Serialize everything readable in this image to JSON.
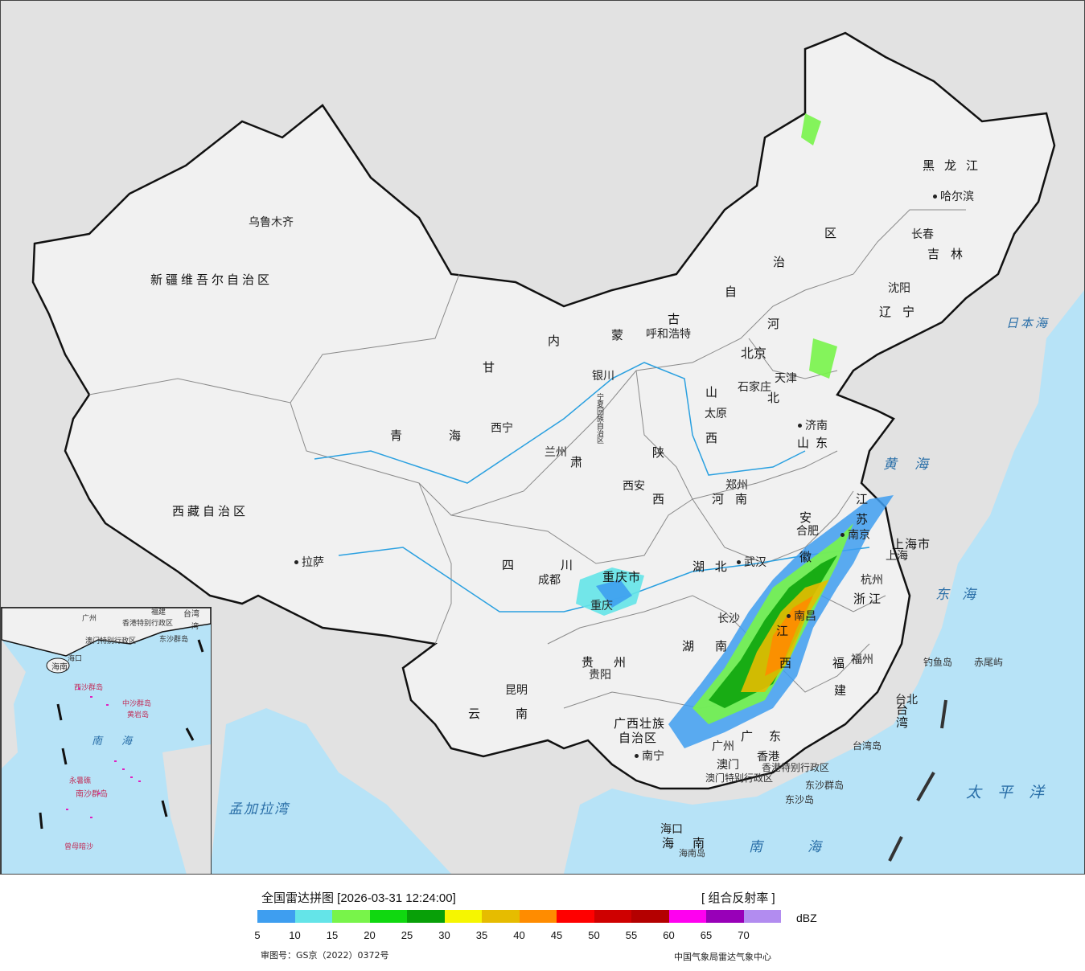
{
  "map": {
    "colors": {
      "sea": "#b7e3f7",
      "land_china": "#f1f1f1",
      "land_foreign": "#e0e0e0",
      "border": "#111111",
      "river": "#2aa0e0"
    },
    "provinces": [
      {
        "id": "xinjiang",
        "label": "新疆维吾尔自治区"
      },
      {
        "id": "xizang",
        "label": "西藏自治区"
      },
      {
        "id": "qinghai-1",
        "label": "青"
      },
      {
        "id": "qinghai-2",
        "label": "海"
      },
      {
        "id": "gansu",
        "label": "甘"
      },
      {
        "id": "sichuan-1",
        "label": "四"
      },
      {
        "id": "sichuan-2",
        "label": "川"
      },
      {
        "id": "yunnan-1",
        "label": "云"
      },
      {
        "id": "yunnan-2",
        "label": "南"
      },
      {
        "id": "guizhou-1",
        "label": "贵"
      },
      {
        "id": "guizhou-2",
        "label": "州"
      },
      {
        "id": "guangxi-1",
        "label": "广西壮族"
      },
      {
        "id": "guangxi-2",
        "label": "自治区"
      },
      {
        "id": "guangdong-1",
        "label": "广"
      },
      {
        "id": "guangdong-2",
        "label": "东"
      },
      {
        "id": "hainan-1",
        "label": "海"
      },
      {
        "id": "hainan-2",
        "label": "南"
      },
      {
        "id": "hunan-1",
        "label": "湖"
      },
      {
        "id": "hunan-2",
        "label": "南"
      },
      {
        "id": "hubei",
        "label": "湖 北"
      },
      {
        "id": "jiangxi-1",
        "label": "江"
      },
      {
        "id": "jiangxi-2",
        "label": "西"
      },
      {
        "id": "fujian-1",
        "label": "福"
      },
      {
        "id": "fujian-2",
        "label": "建"
      },
      {
        "id": "zhejiang",
        "label": "浙江"
      },
      {
        "id": "anhui-1",
        "label": "安"
      },
      {
        "id": "anhui-2",
        "label": "徽"
      },
      {
        "id": "jiangsu-1",
        "label": "江"
      },
      {
        "id": "jiangsu-2",
        "label": "苏"
      },
      {
        "id": "shanghai",
        "label": "上海市"
      },
      {
        "id": "henan",
        "label": "河南"
      },
      {
        "id": "shandong",
        "label": "山东"
      },
      {
        "id": "shanxi-1",
        "label": "山"
      },
      {
        "id": "shanxi-2",
        "label": "西"
      },
      {
        "id": "shaanxi-1",
        "label": "陕"
      },
      {
        "id": "shaanxi-2",
        "label": "西"
      },
      {
        "id": "hebei-1",
        "label": "河"
      },
      {
        "id": "hebei-2",
        "label": "北"
      },
      {
        "id": "chongqing",
        "label": "重庆市"
      },
      {
        "id": "gansu-2",
        "label": "肃"
      },
      {
        "id": "neimenggu-1",
        "label": "内"
      },
      {
        "id": "neimenggu-2",
        "label": "蒙"
      },
      {
        "id": "neimenggu-3",
        "label": "古"
      },
      {
        "id": "neimenggu-4",
        "label": "自"
      },
      {
        "id": "neimenggu-5",
        "label": "治"
      },
      {
        "id": "neimenggu-6",
        "label": "区"
      },
      {
        "id": "liaoning",
        "label": "辽宁"
      },
      {
        "id": "jilin",
        "label": "吉林"
      },
      {
        "id": "heilongjiang",
        "label": "黑龙江"
      },
      {
        "id": "taiwan",
        "label": "台湾"
      },
      {
        "id": "hongkong",
        "label": "香港特别行政区"
      },
      {
        "id": "macau",
        "label": "澳门特别行政区"
      },
      {
        "id": "ningxia",
        "label": "宁夏回族自治区"
      }
    ],
    "cities": [
      {
        "id": "urumqi",
        "label": "乌鲁木齐"
      },
      {
        "id": "lhasa",
        "label": "拉萨"
      },
      {
        "id": "xining",
        "label": "西宁"
      },
      {
        "id": "lanzhou",
        "label": "兰州"
      },
      {
        "id": "yinchuan",
        "label": "银川"
      },
      {
        "id": "hohhot",
        "label": "呼和浩特"
      },
      {
        "id": "beijing",
        "label": "北京"
      },
      {
        "id": "tianjin",
        "label": "天津"
      },
      {
        "id": "shijiazhuang",
        "label": "石家庄"
      },
      {
        "id": "taiyuan",
        "label": "太原"
      },
      {
        "id": "jinan",
        "label": "济南"
      },
      {
        "id": "zhengzhou",
        "label": "郑州"
      },
      {
        "id": "xian",
        "label": "西安"
      },
      {
        "id": "chengdu",
        "label": "成都"
      },
      {
        "id": "chongqing-city",
        "label": "重庆"
      },
      {
        "id": "wuhan",
        "label": "武汉"
      },
      {
        "id": "hefei",
        "label": "合肥"
      },
      {
        "id": "nanjing",
        "label": "南京"
      },
      {
        "id": "shanghai-city",
        "label": "上海"
      },
      {
        "id": "hangzhou",
        "label": "杭州"
      },
      {
        "id": "nanchang",
        "label": "南昌"
      },
      {
        "id": "changsha",
        "label": "长沙"
      },
      {
        "id": "fuzhou",
        "label": "福州"
      },
      {
        "id": "taibei",
        "label": "台北"
      },
      {
        "id": "guiyang",
        "label": "贵阳"
      },
      {
        "id": "kunming",
        "label": "昆明"
      },
      {
        "id": "nanning",
        "label": "南宁"
      },
      {
        "id": "guangzhou",
        "label": "广州"
      },
      {
        "id": "hongkong-city",
        "label": "香港"
      },
      {
        "id": "macau-city",
        "label": "澳门"
      },
      {
        "id": "haikou",
        "label": "海口"
      },
      {
        "id": "shenyang",
        "label": "沈阳"
      },
      {
        "id": "changchun",
        "label": "长春"
      },
      {
        "id": "harbin",
        "label": "哈尔滨"
      }
    ],
    "seas": [
      {
        "id": "japan-sea",
        "label": "日本海"
      },
      {
        "id": "yellow-sea",
        "label": "黄海"
      },
      {
        "id": "east-sea",
        "label": "东海"
      },
      {
        "id": "pacific",
        "label": "太平洋"
      },
      {
        "id": "south-sea",
        "label": "南海"
      },
      {
        "id": "bengal",
        "label": "孟加拉湾"
      }
    ],
    "islands": [
      {
        "id": "diaoyu",
        "label": "钓鱼岛"
      },
      {
        "id": "chiwei",
        "label": "赤尾屿"
      },
      {
        "id": "taiwan-island",
        "label": "台湾岛"
      },
      {
        "id": "dongsha-islands",
        "label": "东沙群岛"
      },
      {
        "id": "dongsha-island",
        "label": "东沙岛"
      },
      {
        "id": "hainan-island",
        "label": "海南岛"
      }
    ],
    "inset": {
      "south_sea": "南海",
      "labels": [
        "台湾",
        "香港特别行政区",
        "澳门特别行政区",
        "东沙群岛",
        "海南",
        "中沙群岛",
        "南沙群岛",
        "曾母暗沙",
        "黄岩岛",
        "永暑礁",
        "西沙群岛",
        "广州",
        "海口",
        "福建",
        "湾"
      ]
    }
  },
  "legend": {
    "title": "全国雷达拼图 [2026-03-31 12:24:00]",
    "product": "[ 组合反射率 ]",
    "unit": "dBZ",
    "ticks": [
      "5",
      "10",
      "15",
      "20",
      "25",
      "30",
      "35",
      "40",
      "45",
      "50",
      "55",
      "60",
      "65",
      "70"
    ],
    "bins": [
      {
        "from": 5,
        "color": "#3e9ef0"
      },
      {
        "from": 10,
        "color": "#64e4e8"
      },
      {
        "from": 15,
        "color": "#78f44a"
      },
      {
        "from": 20,
        "color": "#10d810"
      },
      {
        "from": 25,
        "color": "#08a008"
      },
      {
        "from": 30,
        "color": "#000000"
      },
      {
        "from": 35,
        "color": "#f6f600"
      },
      {
        "from": 40,
        "color": "#e6bc00"
      },
      {
        "from": 45,
        "color": "#ff8c00"
      },
      {
        "from": 50,
        "color": "#ff0000"
      },
      {
        "from": 55,
        "color": "#cf0000"
      },
      {
        "from": 60,
        "color": "#b40000"
      },
      {
        "from": 65,
        "color": "#ff00f0"
      },
      {
        "from": 70,
        "color": "#9800b8"
      }
    ],
    "bins_fix": {
      "30": "#08a008",
      "30b": "#f6f600"
    },
    "extra_bin_color": "#b28cf0",
    "map_review_no": "审图号：GS京（2022）0372号",
    "agency": "中国气象局雷达气象中心"
  }
}
